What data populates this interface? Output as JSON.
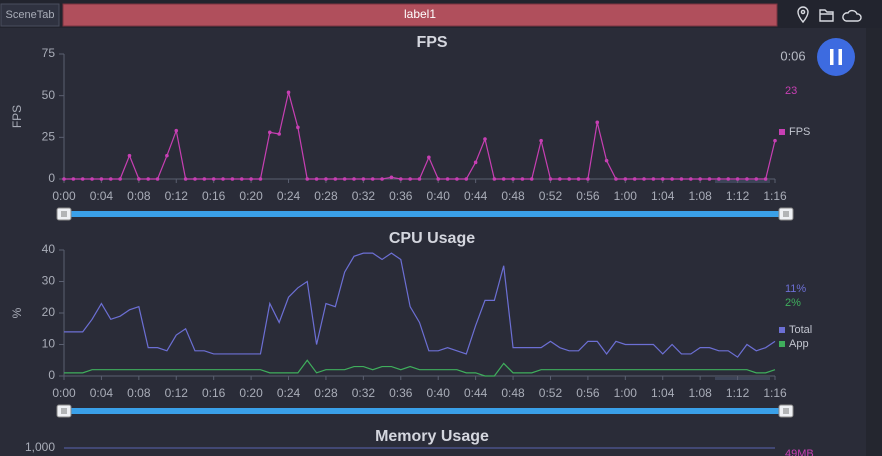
{
  "toolbar": {
    "tab": "SceneTab",
    "label": "label1"
  },
  "timer": "0:06",
  "chart_data": [
    {
      "type": "line",
      "title": "FPS",
      "y_label": "FPS",
      "markers": true,
      "grid": false,
      "x": [
        0,
        1,
        2,
        3,
        4,
        5,
        6,
        7,
        8,
        9,
        10,
        11,
        12,
        13,
        14,
        15,
        16,
        17,
        18,
        19,
        20,
        21,
        22,
        23,
        24,
        25,
        26,
        27,
        28,
        29,
        30,
        31,
        32,
        33,
        34,
        35,
        36,
        37,
        38,
        39,
        40,
        41,
        42,
        43,
        44,
        45,
        46,
        47,
        48,
        49,
        50,
        51,
        52,
        53,
        54,
        55,
        56,
        57,
        58,
        59,
        60,
        61,
        62,
        63,
        64,
        65,
        66,
        67,
        68,
        69,
        70,
        71,
        72,
        73,
        74,
        75,
        76
      ],
      "series": [
        {
          "name": "FPS",
          "color": "#c73fb3",
          "current_label": "23",
          "values": [
            0,
            0,
            0,
            0,
            0,
            0,
            0,
            14,
            0,
            0,
            0,
            14,
            29,
            0,
            0,
            0,
            0,
            0,
            0,
            0,
            0,
            0,
            28,
            27,
            52,
            31,
            0,
            0,
            0,
            0,
            0,
            0,
            0,
            0,
            0,
            1,
            0,
            0,
            0,
            13,
            0,
            0,
            0,
            0,
            10,
            24,
            0,
            0,
            0,
            0,
            0,
            23,
            0,
            0,
            0,
            0,
            0,
            34,
            11,
            0,
            0,
            0,
            0,
            0,
            0,
            0,
            0,
            0,
            0,
            0,
            0,
            0,
            0,
            0,
            0,
            0,
            23
          ]
        }
      ],
      "xlim": [
        0,
        76
      ],
      "xticks": [
        {
          "value": 0,
          "label": "0:00"
        },
        {
          "value": 4,
          "label": "0:04"
        },
        {
          "value": 8,
          "label": "0:08"
        },
        {
          "value": 12,
          "label": "0:12"
        },
        {
          "value": 16,
          "label": "0:16"
        },
        {
          "value": 20,
          "label": "0:20"
        },
        {
          "value": 24,
          "label": "0:24"
        },
        {
          "value": 28,
          "label": "0:28"
        },
        {
          "value": 32,
          "label": "0:32"
        },
        {
          "value": 36,
          "label": "0:36"
        },
        {
          "value": 40,
          "label": "0:40"
        },
        {
          "value": 44,
          "label": "0:44"
        },
        {
          "value": 48,
          "label": "0:48"
        },
        {
          "value": 52,
          "label": "0:52"
        },
        {
          "value": 56,
          "label": "0:56"
        },
        {
          "value": 60,
          "label": "1:00"
        },
        {
          "value": 64,
          "label": "1:04"
        },
        {
          "value": 68,
          "label": "1:08"
        },
        {
          "value": 72,
          "label": "1:12"
        },
        {
          "value": 76,
          "label": "1:16"
        }
      ],
      "ylim": [
        0,
        75
      ],
      "yticks": [
        0,
        25,
        50,
        75
      ]
    },
    {
      "type": "line",
      "title": "CPU Usage",
      "y_label": "%",
      "markers": false,
      "grid": false,
      "x": [
        0,
        1,
        2,
        3,
        4,
        5,
        6,
        7,
        8,
        9,
        10,
        11,
        12,
        13,
        14,
        15,
        16,
        17,
        18,
        19,
        20,
        21,
        22,
        23,
        24,
        25,
        26,
        27,
        28,
        29,
        30,
        31,
        32,
        33,
        34,
        35,
        36,
        37,
        38,
        39,
        40,
        41,
        42,
        43,
        44,
        45,
        46,
        47,
        48,
        49,
        50,
        51,
        52,
        53,
        54,
        55,
        56,
        57,
        58,
        59,
        60,
        61,
        62,
        63,
        64,
        65,
        66,
        67,
        68,
        69,
        70,
        71,
        72,
        73,
        74,
        75,
        76
      ],
      "series": [
        {
          "name": "Total",
          "color": "#6c6fd4",
          "current_label": "11%",
          "values": [
            14,
            14,
            14,
            18,
            23,
            18,
            19,
            21,
            22,
            9,
            9,
            8,
            13,
            15,
            8,
            8,
            7,
            7,
            7,
            7,
            7,
            7,
            23,
            17,
            25,
            28,
            30,
            10,
            23,
            22,
            33,
            38,
            39,
            39,
            37,
            39,
            37,
            22,
            17,
            8,
            8,
            9,
            8,
            7,
            16,
            24,
            24,
            35,
            9,
            9,
            9,
            9,
            11,
            9,
            8,
            8,
            11,
            11,
            7,
            11,
            10,
            10,
            10,
            10,
            7,
            10,
            7,
            7,
            9,
            9,
            8,
            8,
            6,
            10,
            8,
            9,
            11
          ]
        },
        {
          "name": "App",
          "color": "#3fae5c",
          "current_label": "2%",
          "values": [
            1,
            1,
            1,
            2,
            2,
            2,
            2,
            2,
            2,
            2,
            2,
            2,
            2,
            2,
            2,
            2,
            2,
            2,
            2,
            2,
            2,
            2,
            1,
            1,
            1,
            1,
            5,
            1,
            2,
            2,
            2,
            3,
            3,
            2,
            3,
            3,
            2,
            3,
            2,
            2,
            2,
            2,
            2,
            1,
            1,
            0,
            0,
            4,
            1,
            1,
            1,
            2,
            2,
            2,
            2,
            2,
            2,
            2,
            2,
            2,
            2,
            2,
            2,
            2,
            2,
            2,
            2,
            2,
            2,
            2,
            2,
            2,
            2,
            2,
            1,
            1,
            2
          ]
        }
      ],
      "xlim": [
        0,
        76
      ],
      "xticks": [
        {
          "value": 0,
          "label": "0:00"
        },
        {
          "value": 4,
          "label": "0:04"
        },
        {
          "value": 8,
          "label": "0:08"
        },
        {
          "value": 12,
          "label": "0:12"
        },
        {
          "value": 16,
          "label": "0:16"
        },
        {
          "value": 20,
          "label": "0:20"
        },
        {
          "value": 24,
          "label": "0:24"
        },
        {
          "value": 28,
          "label": "0:28"
        },
        {
          "value": 32,
          "label": "0:32"
        },
        {
          "value": 36,
          "label": "0:36"
        },
        {
          "value": 40,
          "label": "0:40"
        },
        {
          "value": 44,
          "label": "0:44"
        },
        {
          "value": 48,
          "label": "0:48"
        },
        {
          "value": 52,
          "label": "0:52"
        },
        {
          "value": 56,
          "label": "0:56"
        },
        {
          "value": 60,
          "label": "1:00"
        },
        {
          "value": 64,
          "label": "1:04"
        },
        {
          "value": 68,
          "label": "1:08"
        },
        {
          "value": 72,
          "label": "1:12"
        },
        {
          "value": 76,
          "label": "1:16"
        }
      ],
      "ylim": [
        0,
        40
      ],
      "yticks": [
        0,
        10,
        20,
        30,
        40
      ]
    },
    {
      "type": "line",
      "title": "Memory Usage",
      "grid": true,
      "current_label": "49MB",
      "label_color": "#c73fb3",
      "ylim": [
        0,
        1000
      ],
      "yticks": [
        {
          "value": 1000,
          "label": "1,000"
        }
      ]
    }
  ]
}
